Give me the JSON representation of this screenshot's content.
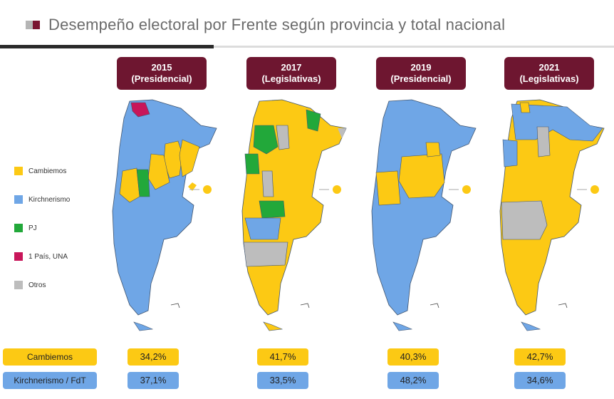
{
  "title": "Desempeño electoral por Frente según provincia y total nacional",
  "colors": {
    "cambiemos": "#fcc914",
    "kirchnerismo": "#6fa6e6",
    "pj": "#22a83a",
    "un_pais": "#c8165a",
    "otros": "#bdbdbd",
    "badge": "#6e1630"
  },
  "legend": [
    {
      "label": "Cambiemos",
      "color": "#fcc914"
    },
    {
      "label": "Kirchnerismo",
      "color": "#6fa6e6"
    },
    {
      "label": "PJ",
      "color": "#22a83a"
    },
    {
      "label": "1 País, UNA",
      "color": "#c8165a"
    },
    {
      "label": "Otros",
      "color": "#bdbdbd"
    }
  ],
  "elections": [
    {
      "year": "2015",
      "type": "(Presidencial)",
      "cambiemos": "34,2%",
      "kirchnerismo": "37,1%"
    },
    {
      "year": "2017",
      "type": "(Legislativas)",
      "cambiemos": "41,7%",
      "kirchnerismo": "33,5%"
    },
    {
      "year": "2019",
      "type": "(Presidencial)",
      "cambiemos": "40,3%",
      "kirchnerismo": "48,2%"
    },
    {
      "year": "2021",
      "type": "(Legislativas)",
      "cambiemos": "42,7%",
      "kirchnerismo": "34,6%"
    }
  ],
  "rows": {
    "cambiemos": "Cambiemos",
    "kirchnerismo": "Kirchnerismo / FdT"
  }
}
